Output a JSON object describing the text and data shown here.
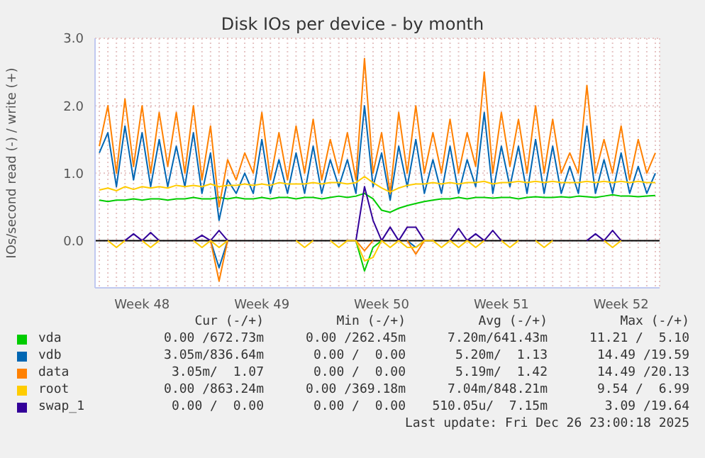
{
  "chart_data": {
    "type": "line",
    "title": "Disk IOs per device - by month",
    "ylabel": "IOs/second read (-) / write (+)",
    "categories": [
      null,
      null,
      null,
      null,
      null,
      "Week 48",
      null,
      null,
      null,
      null,
      null,
      null,
      null,
      null,
      null,
      null,
      null,
      null,
      null,
      "Week 49",
      null,
      null,
      null,
      null,
      null,
      null,
      null,
      null,
      null,
      null,
      null,
      null,
      null,
      "Week 50",
      null,
      null,
      null,
      null,
      null,
      null,
      null,
      null,
      null,
      null,
      null,
      null,
      null,
      "Week 51",
      null,
      null,
      null,
      null,
      null,
      null,
      null,
      null,
      null,
      null,
      null,
      null,
      null,
      "Week 52",
      null,
      null,
      null,
      null
    ],
    "series": [
      {
        "name": "vda",
        "color": "#00cc00",
        "values": [
          0.6,
          0.58,
          0.6,
          0.6,
          0.62,
          0.6,
          0.62,
          0.62,
          0.6,
          0.62,
          0.62,
          0.64,
          0.62,
          0.62,
          0.64,
          0.62,
          0.64,
          0.62,
          0.62,
          0.64,
          0.62,
          0.64,
          0.64,
          0.62,
          0.64,
          0.64,
          0.62,
          0.64,
          0.66,
          0.64,
          0.66,
          0.7,
          0.62,
          0.45,
          0.42,
          0.48,
          0.52,
          0.55,
          0.58,
          0.6,
          0.62,
          0.62,
          0.64,
          0.62,
          0.64,
          0.64,
          0.63,
          0.64,
          0.64,
          0.62,
          0.64,
          0.65,
          0.64,
          0.64,
          0.65,
          0.64,
          0.66,
          0.65,
          0.64,
          0.66,
          0.68,
          0.66,
          0.66,
          0.65,
          0.66,
          0.67
        ]
      },
      {
        "name": "vdb",
        "color": "#0066b3",
        "values": [
          1.3,
          1.6,
          0.8,
          1.7,
          0.9,
          1.6,
          0.8,
          1.5,
          0.8,
          1.4,
          0.8,
          1.6,
          0.7,
          1.3,
          0.3,
          0.9,
          0.7,
          1.0,
          0.7,
          1.5,
          0.7,
          1.2,
          0.7,
          1.3,
          0.7,
          1.4,
          0.7,
          1.2,
          0.8,
          1.2,
          0.7,
          2.0,
          0.8,
          1.3,
          0.6,
          1.4,
          0.8,
          1.5,
          0.7,
          1.2,
          0.7,
          1.4,
          0.7,
          1.2,
          0.8,
          1.9,
          0.7,
          1.4,
          0.8,
          1.4,
          0.7,
          1.5,
          0.7,
          1.4,
          0.7,
          1.1,
          0.7,
          1.7,
          0.7,
          1.2,
          0.7,
          1.3,
          0.7,
          1.1,
          0.7,
          1.0
        ]
      },
      {
        "name": "data",
        "color": "#ff8000",
        "values": [
          1.4,
          2.0,
          1.0,
          2.1,
          1.1,
          2.0,
          1.0,
          1.9,
          1.1,
          1.9,
          1.0,
          2.0,
          0.9,
          1.7,
          0.5,
          1.2,
          0.9,
          1.3,
          1.0,
          1.9,
          0.9,
          1.6,
          0.9,
          1.7,
          1.0,
          1.8,
          0.9,
          1.5,
          1.0,
          1.6,
          0.9,
          2.7,
          1.0,
          1.6,
          0.7,
          1.9,
          1.0,
          2.0,
          1.0,
          1.6,
          1.0,
          1.8,
          1.0,
          1.6,
          1.1,
          2.5,
          1.0,
          1.9,
          1.1,
          1.8,
          1.0,
          2.0,
          1.0,
          1.8,
          1.0,
          1.3,
          1.0,
          2.3,
          1.0,
          1.5,
          1.0,
          1.7,
          0.9,
          1.5,
          1.0,
          1.3
        ]
      },
      {
        "name": "root",
        "color": "#ffcc00",
        "values": [
          0.75,
          0.78,
          0.74,
          0.8,
          0.76,
          0.8,
          0.78,
          0.8,
          0.78,
          0.82,
          0.8,
          0.82,
          0.8,
          0.84,
          0.8,
          0.82,
          0.82,
          0.84,
          0.82,
          0.84,
          0.82,
          0.86,
          0.84,
          0.84,
          0.84,
          0.86,
          0.84,
          0.86,
          0.86,
          0.84,
          0.86,
          0.95,
          0.86,
          0.78,
          0.72,
          0.78,
          0.82,
          0.84,
          0.84,
          0.86,
          0.84,
          0.86,
          0.84,
          0.86,
          0.86,
          0.88,
          0.84,
          0.86,
          0.86,
          0.88,
          0.86,
          0.88,
          0.86,
          0.88,
          0.86,
          0.86,
          0.86,
          0.88,
          0.86,
          0.88,
          0.86,
          0.88,
          0.86,
          0.88,
          0.86,
          0.86
        ]
      },
      {
        "name": "swap_1",
        "color": "#330099",
        "values": [
          null,
          null,
          null,
          0,
          0.1,
          0,
          0.12,
          0,
          null,
          null,
          null,
          0,
          0.08,
          0,
          0.15,
          0,
          null,
          null,
          null,
          null,
          null,
          null,
          null,
          null,
          null,
          null,
          null,
          null,
          null,
          null,
          0,
          0.8,
          0.3,
          0,
          0.2,
          0,
          0.2,
          0.2,
          0,
          null,
          null,
          0,
          0.18,
          0,
          0.1,
          0,
          0.15,
          0,
          null,
          null,
          null,
          null,
          null,
          null,
          null,
          null,
          null,
          0,
          0.1,
          0,
          0.15,
          0,
          null,
          null,
          null,
          null
        ]
      },
      {
        "color": "#00cc00",
        "values": [
          null,
          null,
          null,
          null,
          null,
          null,
          null,
          null,
          null,
          null,
          null,
          null,
          null,
          null,
          null,
          null,
          null,
          null,
          null,
          null,
          null,
          null,
          null,
          null,
          null,
          null,
          null,
          null,
          null,
          null,
          0,
          -0.45,
          -0.1,
          0,
          null,
          null,
          null,
          null,
          null,
          null,
          null,
          null,
          null,
          null,
          null,
          null,
          null,
          null,
          null,
          null,
          null,
          null,
          null,
          null,
          null,
          null,
          null,
          null,
          null,
          null,
          null,
          null,
          null,
          null,
          null,
          null
        ]
      },
      {
        "color": "#0066b3",
        "values": [
          null,
          null,
          null,
          null,
          null,
          null,
          null,
          null,
          null,
          null,
          null,
          null,
          null,
          0,
          -0.4,
          0,
          null,
          null,
          null,
          null,
          null,
          null,
          null,
          null,
          null,
          null,
          null,
          null,
          null,
          null,
          null,
          null,
          null,
          null,
          null,
          null,
          0,
          -0.1,
          0,
          null,
          null,
          null,
          null,
          null,
          null,
          null,
          null,
          null,
          null,
          null,
          null,
          null,
          null,
          null,
          null,
          null,
          null,
          null,
          null,
          null,
          null,
          null,
          null,
          null,
          null,
          null
        ]
      },
      {
        "color": "#ff8000",
        "values": [
          null,
          null,
          null,
          null,
          null,
          null,
          null,
          null,
          null,
          null,
          null,
          null,
          null,
          0,
          -0.6,
          0,
          null,
          null,
          null,
          null,
          null,
          null,
          null,
          null,
          null,
          null,
          null,
          null,
          null,
          null,
          0,
          -0.15,
          0,
          null,
          null,
          null,
          0,
          -0.2,
          0,
          null,
          null,
          null,
          null,
          null,
          null,
          null,
          null,
          null,
          null,
          null,
          null,
          null,
          null,
          null,
          null,
          null,
          null,
          null,
          null,
          null,
          null,
          null,
          null,
          null,
          null,
          null
        ]
      },
      {
        "color": "#ffcc00",
        "values": [
          null,
          0,
          -0.1,
          0,
          null,
          0,
          -0.1,
          0,
          null,
          null,
          null,
          0,
          -0.1,
          0,
          -0.1,
          0,
          null,
          null,
          null,
          null,
          null,
          null,
          null,
          0,
          -0.1,
          0,
          null,
          0,
          -0.1,
          0,
          0,
          -0.3,
          -0.25,
          0,
          -0.1,
          0,
          -0.1,
          -0.1,
          0,
          0,
          -0.1,
          0,
          -0.1,
          0,
          -0.1,
          0,
          null,
          0,
          -0.1,
          0,
          null,
          0,
          -0.1,
          0,
          null,
          null,
          null,
          null,
          null,
          0,
          -0.1,
          0,
          null,
          null,
          null,
          null
        ]
      }
    ],
    "ylim": [
      -0.7,
      3.0
    ],
    "yticks": [
      {
        "value": 0,
        "label": "0.0"
      },
      {
        "value": 1,
        "label": "1.0"
      },
      {
        "value": 2,
        "label": "2.0"
      },
      {
        "value": 3,
        "label": "3.0"
      }
    ],
    "ref_lines": [
      {
        "axis": "y",
        "value": 0,
        "color": "#000000"
      }
    ],
    "grid": true,
    "legend": "bottom",
    "annotations": [
      "Cur (-/+)",
      "Min (-/+)",
      "Avg (-/+)",
      "Max (-/+)",
      "0.00 /672.73m",
      "0.00 /262.45m",
      "7.20m/641.43m",
      "11.21 /  5.10",
      "3.05m/836.64m",
      "0.00 /  0.00",
      "5.20m/  1.13",
      "14.49 /19.59",
      "3.05m/  1.07",
      "0.00 /  0.00",
      "5.19m/  1.42",
      "14.49 /20.13",
      "0.00 /863.24m",
      "0.00 /369.18m",
      "7.04m/848.21m",
      "9.54 /  6.99",
      "0.00 /  0.00",
      "0.00 /  0.00",
      "510.05u/  7.15m",
      "3.09 /19.64",
      "Last update: Fri Dec 26 23:00:18 2025"
    ]
  }
}
